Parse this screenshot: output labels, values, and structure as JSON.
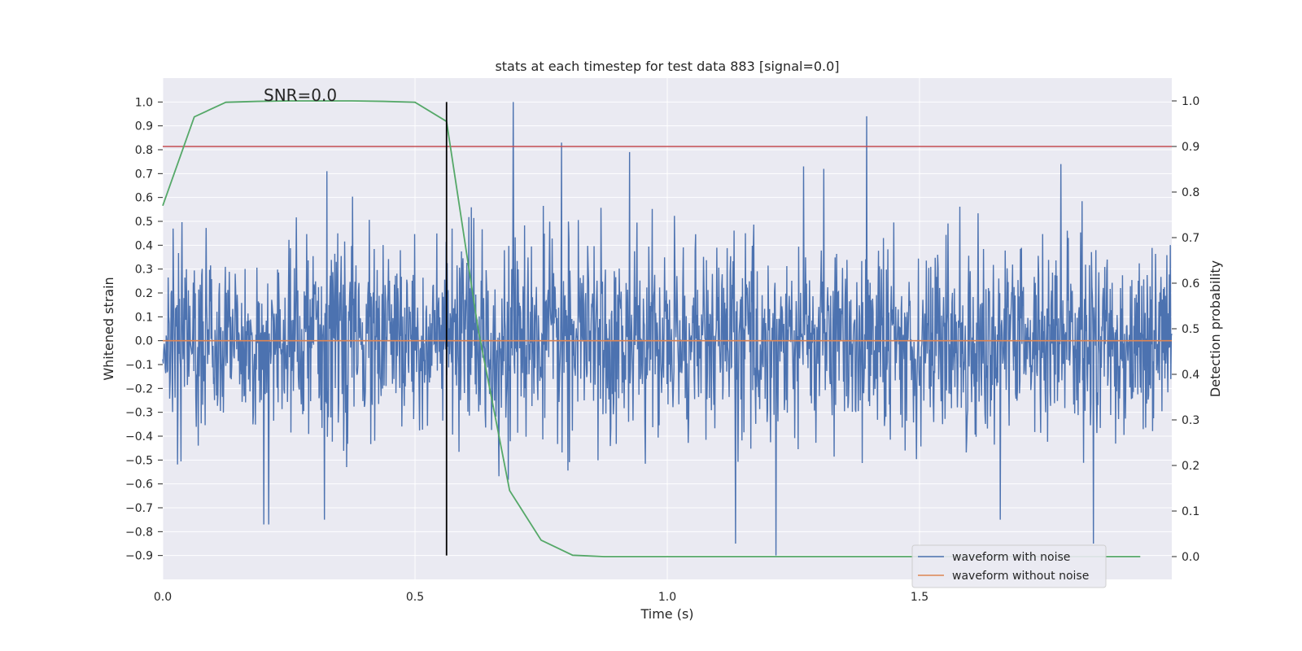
{
  "chart_data": {
    "type": "line",
    "title": "stats at each timestep for test data 883 [signal=0.0]",
    "xlabel": "Time (s)",
    "ylabel": "Whitened strain",
    "ylabel_right": "Detection probability",
    "xlim": [
      0.0,
      2.0
    ],
    "ylim": [
      -1.0,
      1.1
    ],
    "ylim_right": [
      -0.05,
      1.05
    ],
    "x_ticks": [
      0.0,
      0.5,
      1.0,
      1.5
    ],
    "x_tick_labels": [
      "0.0",
      "0.5",
      "1.0",
      "1.5"
    ],
    "y_ticks": [
      1.0,
      0.9,
      0.8,
      0.7,
      0.6,
      0.5,
      0.4,
      0.3,
      0.2,
      0.1,
      0.0,
      -0.1,
      -0.2,
      -0.3,
      -0.4,
      -0.5,
      -0.6,
      -0.7,
      -0.8,
      -0.9
    ],
    "y_tick_labels": [
      "1.0",
      "0.9",
      "0.8",
      "0.7",
      "0.6",
      "0.5",
      "0.4",
      "0.3",
      "0.2",
      "0.1",
      "0.0",
      "−0.1",
      "−0.2",
      "−0.3",
      "−0.4",
      "−0.5",
      "−0.6",
      "−0.7",
      "−0.8",
      "−0.9"
    ],
    "y_ticks_right": [
      1.0,
      0.9,
      0.8,
      0.7,
      0.6,
      0.5,
      0.4,
      0.3,
      0.2,
      0.1,
      0.0
    ],
    "y_tick_labels_right": [
      "1.0",
      "0.9",
      "0.8",
      "0.7",
      "0.6",
      "0.5",
      "0.4",
      "0.3",
      "0.2",
      "0.1",
      "0.0"
    ],
    "grid": true,
    "legend_position": "bottom-right",
    "series": [
      {
        "name": "waveform with noise",
        "axis": "left",
        "color": "#4c72b0",
        "kind": "noise",
        "n_samples": 2048,
        "x_range": [
          0.0,
          2.0
        ],
        "spikes": [
          {
            "t": 0.695,
            "v": 1.0
          },
          {
            "t": 1.395,
            "v": 0.94
          },
          {
            "t": 0.79,
            "v": 0.83
          },
          {
            "t": 0.925,
            "v": 0.79
          },
          {
            "t": 1.215,
            "v": -0.9
          },
          {
            "t": 1.135,
            "v": -0.85
          },
          {
            "t": 1.845,
            "v": -0.85
          },
          {
            "t": 0.2,
            "v": -0.77
          },
          {
            "t": 0.21,
            "v": -0.77
          },
          {
            "t": 0.32,
            "v": -0.75
          },
          {
            "t": 1.66,
            "v": -0.75
          },
          {
            "t": 0.325,
            "v": 0.71
          },
          {
            "t": 1.27,
            "v": 0.73
          },
          {
            "t": 1.31,
            "v": 0.72
          },
          {
            "t": 1.78,
            "v": 0.74
          }
        ]
      },
      {
        "name": "waveform without noise",
        "axis": "left",
        "color": "#dd8452",
        "x": [
          0.0,
          2.0
        ],
        "values": [
          0.0,
          0.0
        ]
      },
      {
        "name": "detection probability",
        "axis": "right",
        "color": "#55a868",
        "x": [
          0.0,
          0.0625,
          0.125,
          0.1875,
          0.25,
          0.3125,
          0.375,
          0.4375,
          0.5,
          0.5625,
          0.625,
          0.6875,
          0.75,
          0.8125,
          0.875,
          0.9375,
          1.0,
          1.0625,
          1.125,
          1.1875,
          1.25,
          1.3125,
          1.375,
          1.4375,
          1.5,
          1.5625,
          1.625,
          1.6875,
          1.75,
          1.8125,
          1.875,
          1.9375
        ],
        "values": [
          0.77,
          0.965,
          0.997,
          0.999,
          1.0,
          1.0,
          1.0,
          0.999,
          0.997,
          0.955,
          0.5,
          0.145,
          0.036,
          0.003,
          0.0,
          0.0,
          0.0,
          0.0,
          0.0,
          0.0,
          0.0,
          0.0,
          0.0,
          0.0,
          0.0,
          0.0,
          0.0,
          0.0,
          0.0,
          0.0,
          0.0,
          0.0
        ]
      }
    ],
    "threshold_line": {
      "axis": "right",
      "value": 0.9,
      "color": "#c44e52"
    },
    "marker_line": {
      "x": 0.5625,
      "y_range": [
        -0.9,
        1.0
      ],
      "color": "#000000"
    },
    "annotations": [
      {
        "text": "SNR=0.0",
        "x": 0.2,
        "y": 1.0
      }
    ],
    "legend": [
      {
        "label": "waveform with noise",
        "color": "#4c72b0"
      },
      {
        "label": "waveform without noise",
        "color": "#dd8452"
      }
    ]
  },
  "colors": {
    "plot_background": "#eaeaf2",
    "grid": "#ffffff",
    "text": "#262626"
  }
}
